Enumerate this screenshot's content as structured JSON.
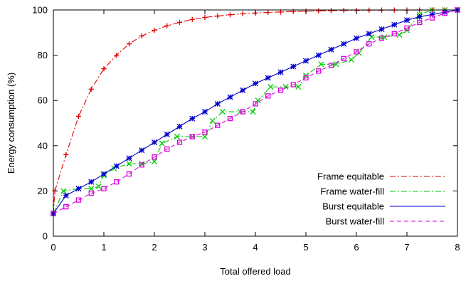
{
  "chart_data": {
    "type": "line",
    "xlabel": "Total offered load",
    "ylabel": "Energy consumption (%)",
    "xlim": [
      0,
      8
    ],
    "ylim": [
      0,
      100
    ],
    "xticks": [
      "0",
      "1",
      "2",
      "3",
      "4",
      "5",
      "6",
      "7",
      "8"
    ],
    "yticks": [
      "0",
      "20",
      "40",
      "60",
      "80",
      "100"
    ],
    "grid": false,
    "legend_position": "bottom-right",
    "series": [
      {
        "name": "Frame equitable",
        "color": "#e00000",
        "dash": "dash-dot",
        "marker": "plus",
        "points": [
          [
            0,
            10
          ],
          [
            0.03,
            20
          ],
          [
            0.25,
            36
          ],
          [
            0.5,
            53
          ],
          [
            0.75,
            65
          ],
          [
            1.0,
            74
          ],
          [
            1.25,
            80
          ],
          [
            1.5,
            85
          ],
          [
            1.75,
            88.5
          ],
          [
            2.0,
            91
          ],
          [
            2.25,
            93
          ],
          [
            2.5,
            94.5
          ],
          [
            2.75,
            95.8
          ],
          [
            3.0,
            96.7
          ],
          [
            3.25,
            97.3
          ],
          [
            3.5,
            97.9
          ],
          [
            3.75,
            98.3
          ],
          [
            4.0,
            98.6
          ],
          [
            4.25,
            98.9
          ],
          [
            4.5,
            99.1
          ],
          [
            4.75,
            99.3
          ],
          [
            5.0,
            99.5
          ],
          [
            5.25,
            99.6
          ],
          [
            5.5,
            99.7
          ],
          [
            5.75,
            99.8
          ],
          [
            6.0,
            99.85
          ],
          [
            6.25,
            99.9
          ],
          [
            6.5,
            99.92
          ],
          [
            6.75,
            99.95
          ],
          [
            7.0,
            99.97
          ],
          [
            7.25,
            99.98
          ],
          [
            7.5,
            99.99
          ],
          [
            7.75,
            100
          ],
          [
            8.0,
            100
          ]
        ]
      },
      {
        "name": "Frame water-fill",
        "color": "#00cc00",
        "dash": "dash-dot",
        "marker": "cross",
        "points": [
          [
            0,
            10
          ],
          [
            0.2,
            20
          ],
          [
            0.5,
            21
          ],
          [
            0.75,
            21
          ],
          [
            0.9,
            22
          ],
          [
            1.0,
            27
          ],
          [
            1.2,
            30
          ],
          [
            1.5,
            32
          ],
          [
            1.75,
            32
          ],
          [
            2.0,
            33
          ],
          [
            2.15,
            41
          ],
          [
            2.45,
            44
          ],
          [
            2.75,
            44
          ],
          [
            3.0,
            44
          ],
          [
            3.15,
            51
          ],
          [
            3.35,
            55
          ],
          [
            3.7,
            55
          ],
          [
            3.95,
            55
          ],
          [
            4.05,
            60
          ],
          [
            4.3,
            66
          ],
          [
            4.6,
            66
          ],
          [
            4.85,
            66
          ],
          [
            5.0,
            71
          ],
          [
            5.3,
            76
          ],
          [
            5.6,
            76
          ],
          [
            5.9,
            78
          ],
          [
            6.05,
            81
          ],
          [
            6.3,
            88
          ],
          [
            6.55,
            88
          ],
          [
            6.85,
            89
          ],
          [
            7.0,
            91
          ],
          [
            7.25,
            98
          ],
          [
            7.5,
            100
          ],
          [
            7.75,
            100
          ],
          [
            8.0,
            100
          ]
        ]
      },
      {
        "name": "Burst equitable",
        "color": "#0000cc",
        "dash": "solid",
        "marker": "star",
        "points": [
          [
            0,
            10
          ],
          [
            0.25,
            18
          ],
          [
            0.5,
            21
          ],
          [
            0.75,
            24
          ],
          [
            1.0,
            27.5
          ],
          [
            1.25,
            31
          ],
          [
            1.5,
            34.5
          ],
          [
            1.75,
            38
          ],
          [
            2.0,
            41.5
          ],
          [
            2.25,
            45
          ],
          [
            2.5,
            48.5
          ],
          [
            2.75,
            52
          ],
          [
            3.0,
            55
          ],
          [
            3.25,
            58.5
          ],
          [
            3.5,
            61.5
          ],
          [
            3.75,
            64.5
          ],
          [
            4.0,
            67.5
          ],
          [
            4.25,
            70
          ],
          [
            4.5,
            72.5
          ],
          [
            4.75,
            75
          ],
          [
            5.0,
            77.5
          ],
          [
            5.25,
            80
          ],
          [
            5.5,
            82.5
          ],
          [
            5.75,
            85
          ],
          [
            6.0,
            87.5
          ],
          [
            6.25,
            89.5
          ],
          [
            6.5,
            91.5
          ],
          [
            6.75,
            93.5
          ],
          [
            7.0,
            95.5
          ],
          [
            7.25,
            97
          ],
          [
            7.5,
            98
          ],
          [
            7.75,
            99
          ],
          [
            8.0,
            100
          ]
        ]
      },
      {
        "name": "Burst water-fill",
        "color": "#dd00dd",
        "dash": "dashed",
        "marker": "square",
        "points": [
          [
            0,
            10
          ],
          [
            0.25,
            13
          ],
          [
            0.5,
            16
          ],
          [
            0.75,
            19
          ],
          [
            1.0,
            21
          ],
          [
            1.25,
            24
          ],
          [
            1.5,
            27.5
          ],
          [
            1.75,
            31.5
          ],
          [
            2.0,
            35
          ],
          [
            2.25,
            38.5
          ],
          [
            2.5,
            41.5
          ],
          [
            2.75,
            44
          ],
          [
            3.0,
            46
          ],
          [
            3.25,
            49
          ],
          [
            3.5,
            52
          ],
          [
            3.75,
            55
          ],
          [
            4.0,
            58.5
          ],
          [
            4.25,
            62
          ],
          [
            4.5,
            64.5
          ],
          [
            4.75,
            67
          ],
          [
            5.0,
            70
          ],
          [
            5.25,
            73
          ],
          [
            5.5,
            75.5
          ],
          [
            5.75,
            78.5
          ],
          [
            6.0,
            81.5
          ],
          [
            6.25,
            85
          ],
          [
            6.5,
            87.5
          ],
          [
            6.75,
            89.5
          ],
          [
            7.0,
            92
          ],
          [
            7.25,
            94.5
          ],
          [
            7.5,
            96.5
          ],
          [
            7.75,
            98.5
          ],
          [
            8.0,
            100
          ]
        ]
      }
    ]
  }
}
